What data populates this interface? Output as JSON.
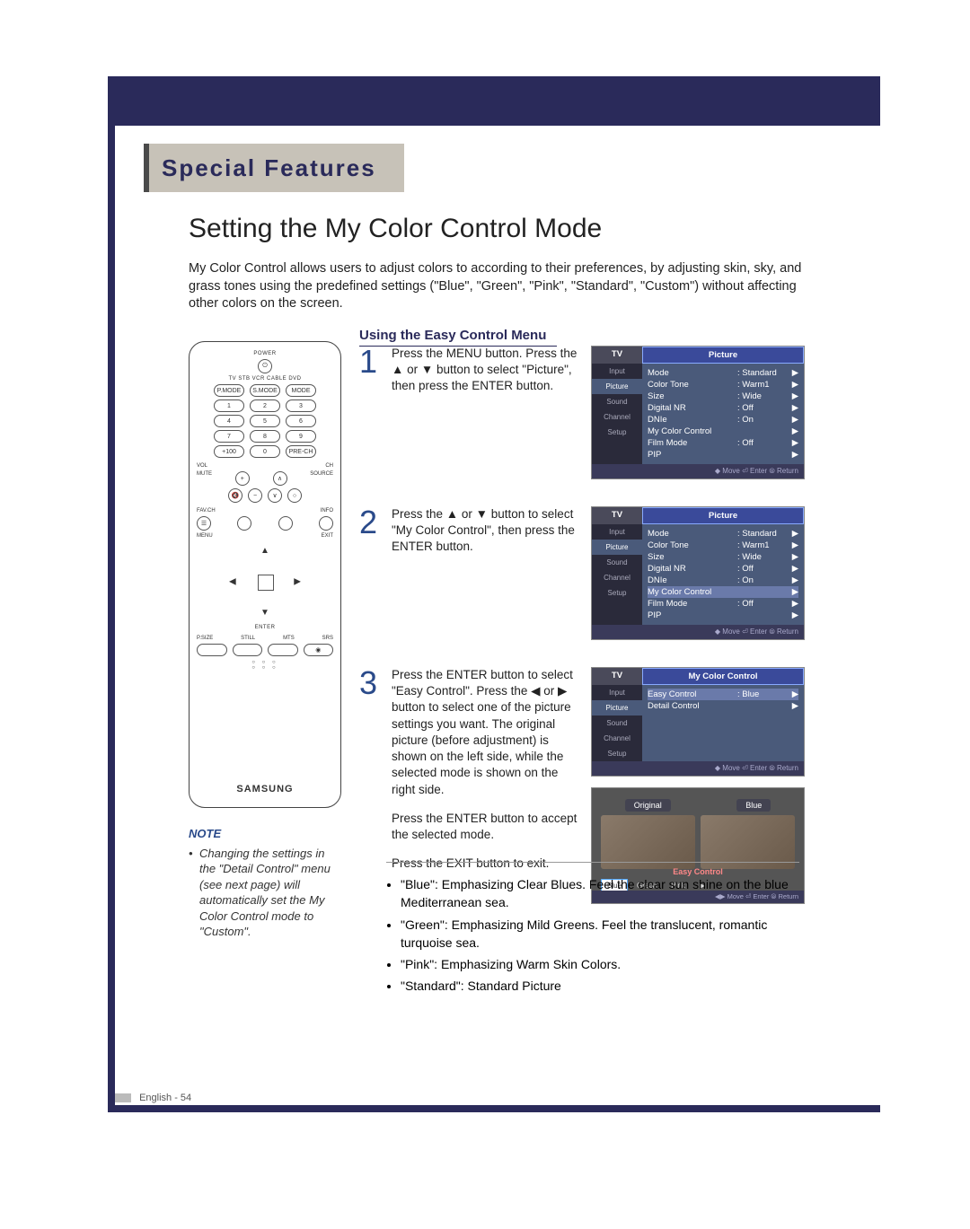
{
  "chapter": "Special Features",
  "section_title": "Setting the My Color Control Mode",
  "intro": "My Color Control allows users to adjust colors to according to their preferences, by adjusting skin, sky, and grass tones using the predefined settings (\"Blue\", \"Green\", \"Pink\", \"Standard\", \"Custom\") without affecting other colors on the screen.",
  "subsection": "Using the Easy Control Menu",
  "remote": {
    "top_labels": [
      "POWER",
      "TV  STB  VCR  CABLE  DVD"
    ],
    "mode_row": [
      "P.MODE",
      "S.MODE",
      "MODE"
    ],
    "numpad": [
      [
        "1",
        "2",
        "3"
      ],
      [
        "4",
        "5",
        "6"
      ],
      [
        "7",
        "8",
        "9"
      ],
      [
        "+100",
        "0",
        "PRE-CH"
      ]
    ],
    "vol_ch": {
      "vol": "VOL",
      "ch": "CH",
      "mute": "MUTE",
      "source": "SOURCE"
    },
    "center_labels": [
      "FAV.CH",
      "INFO",
      "MENU",
      "EXIT"
    ],
    "enter": "ENTER",
    "bottom_row": [
      "P.SIZE",
      "STILL",
      "MTS",
      "SRS"
    ],
    "brand": "SAMSUNG"
  },
  "steps": [
    {
      "num": "1",
      "text": "Press the MENU button. Press the ▲ or ▼ button to select \"Picture\", then press the ENTER button.",
      "osd": {
        "tv": "TV",
        "title": "Picture",
        "left_items": [
          "Input",
          "Picture",
          "Sound",
          "Channel",
          "Setup"
        ],
        "left_sel": 1,
        "rows": [
          {
            "label": "Mode",
            "val": ": Standard"
          },
          {
            "label": "Color Tone",
            "val": ": Warm1"
          },
          {
            "label": "Size",
            "val": ": Wide"
          },
          {
            "label": "Digital NR",
            "val": ": Off"
          },
          {
            "label": "DNIe",
            "val": ": On"
          },
          {
            "label": "My Color Control",
            "val": ""
          },
          {
            "label": "Film Mode",
            "val": ": Off"
          },
          {
            "label": "PIP",
            "val": ""
          }
        ],
        "sel_row": -1,
        "footer": "◆ Move    ⏎ Enter    ⦾ Return"
      }
    },
    {
      "num": "2",
      "text": "Press the ▲ or ▼ button to select \"My Color Control\", then press the ENTER button.",
      "osd": {
        "tv": "TV",
        "title": "Picture",
        "left_items": [
          "Input",
          "Picture",
          "Sound",
          "Channel",
          "Setup"
        ],
        "left_sel": 1,
        "rows": [
          {
            "label": "Mode",
            "val": ": Standard"
          },
          {
            "label": "Color Tone",
            "val": ": Warm1"
          },
          {
            "label": "Size",
            "val": ": Wide"
          },
          {
            "label": "Digital NR",
            "val": ": Off"
          },
          {
            "label": "DNIe",
            "val": ": On"
          },
          {
            "label": "My Color Control",
            "val": ""
          },
          {
            "label": "Film Mode",
            "val": ": Off"
          },
          {
            "label": "PIP",
            "val": ""
          }
        ],
        "sel_row": 5,
        "footer": "◆ Move    ⏎ Enter    ⦾ Return"
      }
    },
    {
      "num": "3",
      "text_a": "Press the ENTER button to select \"Easy Control\". Press the ◀ or ▶ button to select one of the picture settings you want. The original picture (before adjustment) is shown on the left side, while the selected mode is shown on the right side.",
      "text_b": "Press the ENTER button to accept the selected mode.",
      "text_c": "Press the EXIT button to exit.",
      "osd": {
        "tv": "TV",
        "title": "My Color Control",
        "left_items": [
          "Input",
          "Picture",
          "Sound",
          "Channel",
          "Setup"
        ],
        "left_sel": 1,
        "rows": [
          {
            "label": "Easy Control",
            "val": ": Blue"
          },
          {
            "label": "Detail Control",
            "val": ""
          }
        ],
        "sel_row": 0,
        "footer": "◆ Move    ⏎ Enter    ⦾ Return"
      },
      "preview": {
        "labels": [
          "Original",
          "Blue"
        ],
        "ec_label": "Easy Control",
        "chips": [
          "Blue",
          "Green",
          "Pink"
        ],
        "chip_sel": 0,
        "arrow": "▶",
        "footer": "◀▶ Move    ⏎ Enter    ⦾ Return"
      }
    }
  ],
  "descriptions": [
    "\"Blue\": Emphasizing Clear Blues. Feel the clear sun shine on the blue Mediterranean sea.",
    "\"Green\": Emphasizing Mild Greens. Feel the translucent, romantic turquoise sea.",
    "\"Pink\": Emphasizing Warm Skin Colors.",
    "\"Standard\": Standard Picture"
  ],
  "note": {
    "title": "NOTE",
    "body": "Changing the settings in the \"Detail Control\" menu (see next page) will automatically set the My Color Control mode to \"Custom\"."
  },
  "page_footer": "English - 54",
  "colors": {
    "frame": "#2a2a5a",
    "chapter_bg": "#c7c2b8",
    "accent": "#2a4a8a",
    "osd_header": "#3a4a9a",
    "osd_body": "#4a5a7a"
  }
}
